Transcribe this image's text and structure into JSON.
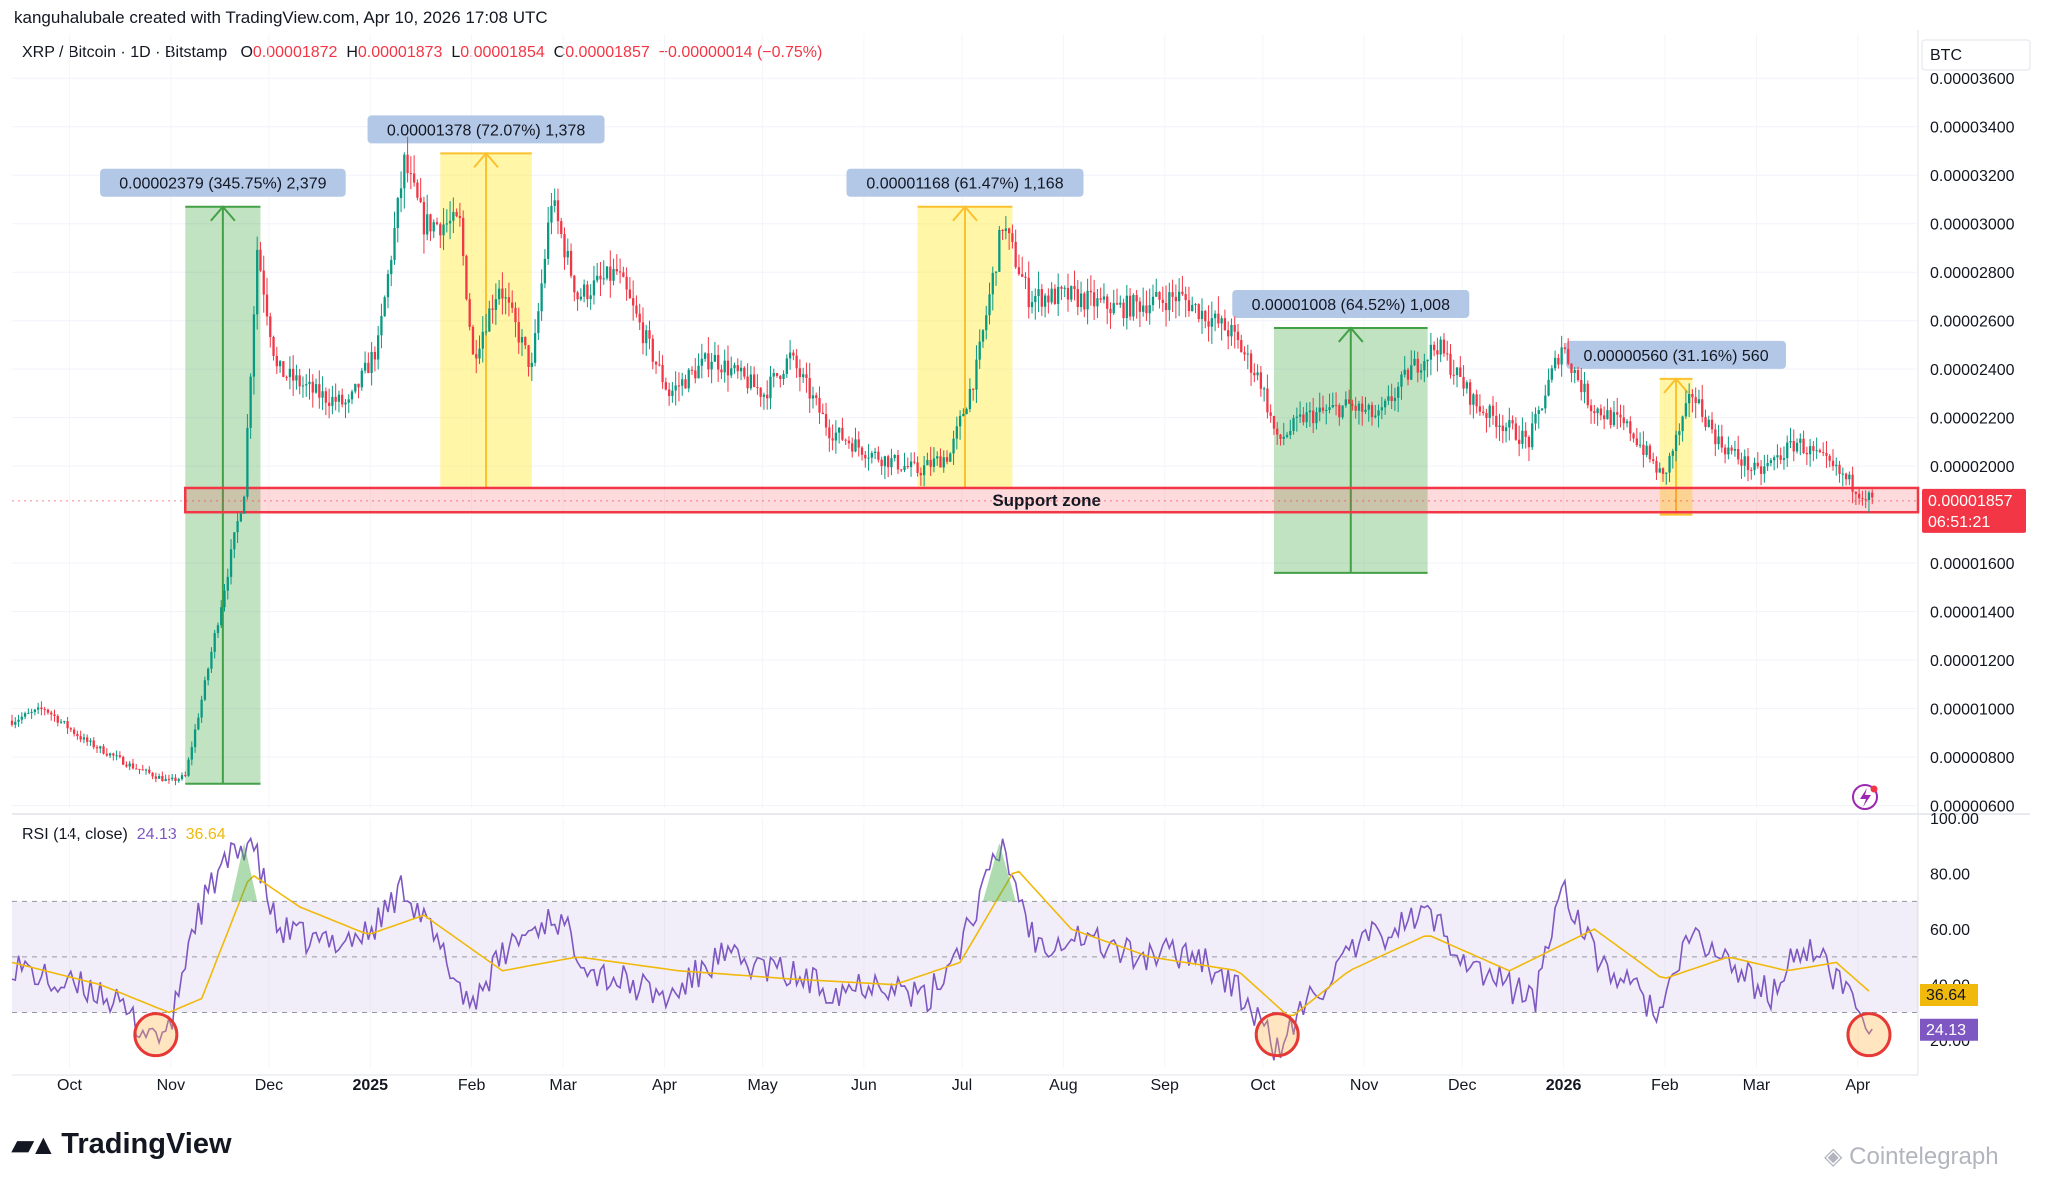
{
  "header": {
    "attribution": "kanguhalubale created with TradingView.com, Apr 10, 2026 17:08 UTC"
  },
  "legend": {
    "symbol": "XRP / Bitcoin · 1D · Bitstamp",
    "o_label": "O",
    "o_value": "0.00001872",
    "h_label": "H",
    "h_value": "0.00001873",
    "l_label": "L",
    "l_value": "0.00001854",
    "c_label": "C",
    "c_value": "0.00001857",
    "change": "−0.00000014 (−0.75%)"
  },
  "rsi_legend": {
    "label": "RSI (14, close)",
    "rsi_value": "24.13",
    "ma_value": "36.64"
  },
  "branding": {
    "logo_text": "TradingView",
    "watermark": "Cointelegraph"
  },
  "colors": {
    "up": "#089981",
    "down": "#f23645",
    "green_box": "#4caf50",
    "yellow_box": "#ffeb3b",
    "support": "#f23645",
    "rsi_line": "#7e57c2",
    "rsi_ma": "#f0b90b",
    "label_bg": "#b3c7e6"
  },
  "chart_data": [
    {
      "type": "candlestick",
      "title": "XRP / Bitcoin · 1D · Bitstamp",
      "currency_label": "BTC",
      "y_ticks": [
        "0.00003600",
        "0.00003400",
        "0.00003200",
        "0.00003000",
        "0.00002800",
        "0.00002600",
        "0.00002400",
        "0.00002200",
        "0.00002000",
        "0.00001600",
        "0.00001400",
        "0.00001200",
        "0.00001000",
        "0.00000800",
        "0.00000600"
      ],
      "ylim": [
        5.9e-06,
        3.7e-05
      ],
      "x_ticks": [
        {
          "label": "Oct",
          "bold": false
        },
        {
          "label": "Nov",
          "bold": false
        },
        {
          "label": "Dec",
          "bold": false
        },
        {
          "label": "2025",
          "bold": true
        },
        {
          "label": "Feb",
          "bold": false
        },
        {
          "label": "Mar",
          "bold": false
        },
        {
          "label": "Apr",
          "bold": false
        },
        {
          "label": "May",
          "bold": false
        },
        {
          "label": "Jun",
          "bold": false
        },
        {
          "label": "Jul",
          "bold": false
        },
        {
          "label": "Aug",
          "bold": false
        },
        {
          "label": "Sep",
          "bold": false
        },
        {
          "label": "Oct",
          "bold": false
        },
        {
          "label": "Nov",
          "bold": false
        },
        {
          "label": "Dec",
          "bold": false
        },
        {
          "label": "2026",
          "bold": true
        },
        {
          "label": "Feb",
          "bold": false
        },
        {
          "label": "Mar",
          "bold": false
        },
        {
          "label": "Apr",
          "bold": false
        }
      ],
      "x_range": [
        "2024-09-18",
        "2026-04-24"
      ],
      "price_path": [
        {
          "date": "2024-09-18",
          "price": 9.5e-06
        },
        {
          "date": "2024-09-28",
          "price": 1e-05
        },
        {
          "date": "2024-10-10",
          "price": 8.7e-06
        },
        {
          "date": "2024-10-25",
          "price": 7.6e-06
        },
        {
          "date": "2024-11-05",
          "price": 7e-06
        },
        {
          "date": "2024-11-10",
          "price": 7.2e-06
        },
        {
          "date": "2024-11-16",
          "price": 1.1e-05
        },
        {
          "date": "2024-11-22",
          "price": 1.5e-05
        },
        {
          "date": "2024-11-28",
          "price": 1.9e-05
        },
        {
          "date": "2024-12-02",
          "price": 2.9e-05
        },
        {
          "date": "2024-12-08",
          "price": 2.4e-05
        },
        {
          "date": "2024-12-20",
          "price": 2.3e-05
        },
        {
          "date": "2024-12-30",
          "price": 2.25e-05
        },
        {
          "date": "2025-01-08",
          "price": 2.5e-05
        },
        {
          "date": "2025-01-16",
          "price": 3.25e-05
        },
        {
          "date": "2025-01-22",
          "price": 3e-05
        },
        {
          "date": "2025-02-02",
          "price": 3e-05
        },
        {
          "date": "2025-02-06",
          "price": 2.45e-05
        },
        {
          "date": "2025-02-14",
          "price": 2.75e-05
        },
        {
          "date": "2025-02-24",
          "price": 2.4e-05
        },
        {
          "date": "2025-03-02",
          "price": 3.1e-05
        },
        {
          "date": "2025-03-10",
          "price": 2.7e-05
        },
        {
          "date": "2025-03-22",
          "price": 2.8e-05
        },
        {
          "date": "2025-04-07",
          "price": 2.3e-05
        },
        {
          "date": "2025-04-20",
          "price": 2.45e-05
        },
        {
          "date": "2025-05-06",
          "price": 2.3e-05
        },
        {
          "date": "2025-05-14",
          "price": 2.45e-05
        },
        {
          "date": "2025-05-26",
          "price": 2.15e-05
        },
        {
          "date": "2025-06-08",
          "price": 2.05e-05
        },
        {
          "date": "2025-06-22",
          "price": 1.98e-05
        },
        {
          "date": "2025-07-02",
          "price": 2.05e-05
        },
        {
          "date": "2025-07-10",
          "price": 2.4e-05
        },
        {
          "date": "2025-07-18",
          "price": 3e-05
        },
        {
          "date": "2025-07-26",
          "price": 2.7e-05
        },
        {
          "date": "2025-08-08",
          "price": 2.7e-05
        },
        {
          "date": "2025-08-22",
          "price": 2.65e-05
        },
        {
          "date": "2025-09-10",
          "price": 2.7e-05
        },
        {
          "date": "2025-09-26",
          "price": 2.55e-05
        },
        {
          "date": "2025-10-05",
          "price": 2.35e-05
        },
        {
          "date": "2025-10-10",
          "price": 2.1e-05
        },
        {
          "date": "2025-10-18",
          "price": 2.2e-05
        },
        {
          "date": "2025-11-01",
          "price": 2.25e-05
        },
        {
          "date": "2025-11-10",
          "price": 2.2e-05
        },
        {
          "date": "2025-11-20",
          "price": 2.4e-05
        },
        {
          "date": "2025-11-28",
          "price": 2.5e-05
        },
        {
          "date": "2025-12-10",
          "price": 2.25e-05
        },
        {
          "date": "2025-12-26",
          "price": 2.1e-05
        },
        {
          "date": "2026-01-05",
          "price": 2.5e-05
        },
        {
          "date": "2026-01-14",
          "price": 2.25e-05
        },
        {
          "date": "2026-01-26",
          "price": 2.15e-05
        },
        {
          "date": "2026-02-05",
          "price": 1.95e-05
        },
        {
          "date": "2026-02-14",
          "price": 2.3e-05
        },
        {
          "date": "2026-02-22",
          "price": 2.1e-05
        },
        {
          "date": "2026-03-06",
          "price": 1.97e-05
        },
        {
          "date": "2026-03-18",
          "price": 2.1e-05
        },
        {
          "date": "2026-03-28",
          "price": 2e-05
        },
        {
          "date": "2026-04-10",
          "price": 1.857e-05
        }
      ],
      "last_price_label": "0.00001857",
      "countdown_label": "06:51:21",
      "support_zone": {
        "label": "Support zone",
        "low": 1.81e-05,
        "high": 1.91e-05,
        "start": "2024-11-10",
        "end": "2026-04-24"
      },
      "measure_boxes": [
        {
          "label": "0.00002379 (345.75%) 2,379",
          "color": "green",
          "start": "2024-11-10",
          "end": "2024-12-03",
          "low": 6.9e-06,
          "high": 3.07e-05
        },
        {
          "label": "0.00001378 (72.07%) 1,378",
          "color": "yellow",
          "start": "2025-01-27",
          "end": "2025-02-24",
          "low": 1.91e-05,
          "high": 3.29e-05
        },
        {
          "label": "0.00001168 (61.47%) 1,168",
          "color": "yellow",
          "start": "2025-06-22",
          "end": "2025-07-21",
          "low": 1.91e-05,
          "high": 3.07e-05
        },
        {
          "label": "0.00001008 (64.52%) 1,008",
          "color": "green",
          "start": "2025-10-09",
          "end": "2025-11-25",
          "low": 1.56e-05,
          "high": 2.57e-05
        },
        {
          "label": "0.00000560 (31.16%) 560",
          "color": "yellow",
          "start": "2026-02-04",
          "end": "2026-02-14",
          "low": 1.8e-05,
          "high": 2.36e-05
        }
      ]
    },
    {
      "type": "line",
      "title": "RSI (14, close)",
      "ylim": [
        10,
        100
      ],
      "y_ticks": [
        "100.00",
        "80.00",
        "60.00",
        "40.00",
        "20.00"
      ],
      "overbought": 70,
      "middle": 50,
      "oversold": 30,
      "series": [
        {
          "name": "RSI",
          "last_label": "24.13",
          "points": [
            {
              "date": "2024-09-18",
              "value": 48
            },
            {
              "date": "2024-10-01",
              "value": 40
            },
            {
              "date": "2024-10-15",
              "value": 38
            },
            {
              "date": "2024-10-28",
              "value": 24
            },
            {
              "date": "2024-11-05",
              "value": 22
            },
            {
              "date": "2024-11-12",
              "value": 60
            },
            {
              "date": "2024-11-20",
              "value": 80
            },
            {
              "date": "2024-11-30",
              "value": 93
            },
            {
              "date": "2024-12-08",
              "value": 60
            },
            {
              "date": "2024-12-20",
              "value": 55
            },
            {
              "date": "2025-01-05",
              "value": 58
            },
            {
              "date": "2025-01-16",
              "value": 76
            },
            {
              "date": "2025-02-05",
              "value": 33
            },
            {
              "date": "2025-02-18",
              "value": 55
            },
            {
              "date": "2025-03-03",
              "value": 65
            },
            {
              "date": "2025-03-15",
              "value": 45
            },
            {
              "date": "2025-04-07",
              "value": 35
            },
            {
              "date": "2025-04-22",
              "value": 50
            },
            {
              "date": "2025-05-10",
              "value": 45
            },
            {
              "date": "2025-05-28",
              "value": 38
            },
            {
              "date": "2025-06-10",
              "value": 42
            },
            {
              "date": "2025-06-25",
              "value": 34
            },
            {
              "date": "2025-07-05",
              "value": 55
            },
            {
              "date": "2025-07-18",
              "value": 90
            },
            {
              "date": "2025-07-28",
              "value": 55
            },
            {
              "date": "2025-08-10",
              "value": 58
            },
            {
              "date": "2025-08-28",
              "value": 50
            },
            {
              "date": "2025-09-15",
              "value": 52
            },
            {
              "date": "2025-09-30",
              "value": 35
            },
            {
              "date": "2025-10-10",
              "value": 16
            },
            {
              "date": "2025-10-20",
              "value": 35
            },
            {
              "date": "2025-11-05",
              "value": 55
            },
            {
              "date": "2025-11-25",
              "value": 66
            },
            {
              "date": "2025-12-10",
              "value": 45
            },
            {
              "date": "2025-12-28",
              "value": 35
            },
            {
              "date": "2026-01-05",
              "value": 77
            },
            {
              "date": "2026-01-15",
              "value": 50
            },
            {
              "date": "2026-02-04",
              "value": 30
            },
            {
              "date": "2026-02-14",
              "value": 58
            },
            {
              "date": "2026-02-28",
              "value": 45
            },
            {
              "date": "2026-03-10",
              "value": 36
            },
            {
              "date": "2026-03-20",
              "value": 55
            },
            {
              "date": "2026-04-01",
              "value": 40
            },
            {
              "date": "2026-04-10",
              "value": 24
            }
          ]
        },
        {
          "name": "RSI-based MA",
          "last_label": "36.64",
          "points": [
            {
              "date": "2024-09-18",
              "value": 48
            },
            {
              "date": "2024-10-15",
              "value": 40
            },
            {
              "date": "2024-11-05",
              "value": 30
            },
            {
              "date": "2024-11-15",
              "value": 35
            },
            {
              "date": "2024-11-30",
              "value": 80
            },
            {
              "date": "2024-12-15",
              "value": 68
            },
            {
              "date": "2025-01-05",
              "value": 58
            },
            {
              "date": "2025-01-22",
              "value": 65
            },
            {
              "date": "2025-02-15",
              "value": 45
            },
            {
              "date": "2025-03-10",
              "value": 50
            },
            {
              "date": "2025-04-10",
              "value": 45
            },
            {
              "date": "2025-05-15",
              "value": 42
            },
            {
              "date": "2025-06-15",
              "value": 40
            },
            {
              "date": "2025-07-05",
              "value": 48
            },
            {
              "date": "2025-07-22",
              "value": 82
            },
            {
              "date": "2025-08-08",
              "value": 60
            },
            {
              "date": "2025-09-01",
              "value": 50
            },
            {
              "date": "2025-09-28",
              "value": 45
            },
            {
              "date": "2025-10-14",
              "value": 28
            },
            {
              "date": "2025-11-01",
              "value": 45
            },
            {
              "date": "2025-11-25",
              "value": 58
            },
            {
              "date": "2025-12-20",
              "value": 45
            },
            {
              "date": "2026-01-15",
              "value": 60
            },
            {
              "date": "2026-02-05",
              "value": 42
            },
            {
              "date": "2026-02-25",
              "value": 50
            },
            {
              "date": "2026-03-15",
              "value": 45
            },
            {
              "date": "2026-03-30",
              "value": 48
            },
            {
              "date": "2026-04-10",
              "value": 36.64
            }
          ]
        }
      ],
      "oversold_circles": [
        "2024-11-01",
        "2025-10-10",
        "2026-04-09"
      ]
    }
  ]
}
